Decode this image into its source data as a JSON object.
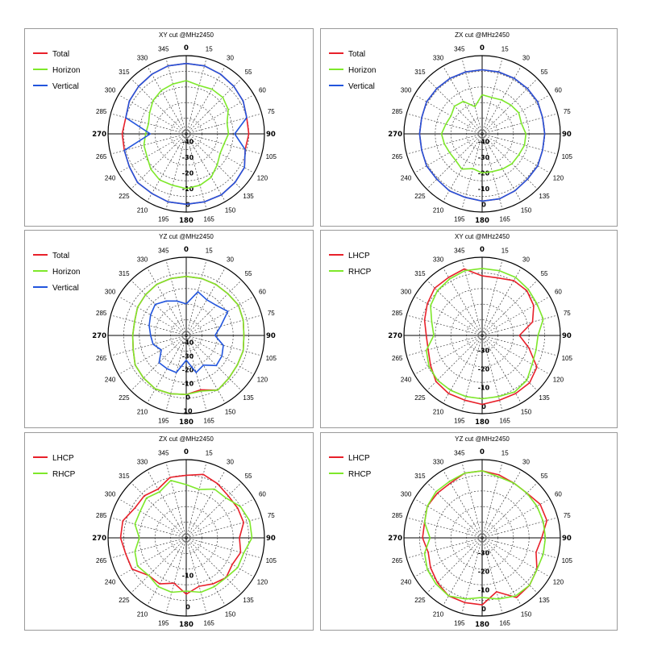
{
  "chart_data": [
    {
      "type": "polar",
      "title": "XY cut @MHz2450",
      "angle_labels": [
        "0",
        "15",
        "30",
        "55",
        "60",
        "75",
        "90",
        "105",
        "120",
        "135",
        "150",
        "165",
        "180",
        "195",
        "210",
        "225",
        "240",
        "265",
        "270",
        "285",
        "300",
        "315",
        "330",
        "345"
      ],
      "radial_labels": [
        "-40",
        "-30",
        "-20",
        "-10",
        "0"
      ],
      "r_range": [
        -45,
        5
      ],
      "legend": [
        "Total",
        "Horizon",
        "Vertical"
      ],
      "series": [
        {
          "name": "Total",
          "color": "#e8202a",
          "r": [
            0,
            0,
            -1,
            -2,
            -3,
            -5,
            -5,
            -6,
            -2,
            -1,
            0,
            0,
            0,
            0,
            -1,
            -1,
            -3,
            -4,
            -4,
            -5,
            -3,
            -2,
            -1,
            0
          ]
        },
        {
          "name": "Horizon",
          "color": "#7ee82a",
          "r": [
            -11,
            -13,
            -12,
            -12,
            -14,
            -18,
            -18,
            -20,
            -20,
            -17,
            -13,
            -11,
            -10,
            -11,
            -11,
            -13,
            -16,
            -17,
            -19,
            -20,
            -18,
            -15,
            -13,
            -12
          ]
        },
        {
          "name": "Vertical",
          "color": "#2255dd",
          "r": [
            0,
            0,
            -1,
            -2,
            -3,
            -5,
            -14,
            -6,
            -2,
            -1,
            0,
            0,
            0,
            0,
            -1,
            -1,
            -3,
            -4,
            -22,
            -5,
            -3,
            -2,
            -1,
            0
          ]
        }
      ]
    },
    {
      "type": "polar",
      "title": "ZX cut @MHz2450",
      "angle_labels": [
        "0",
        "15",
        "30",
        "55",
        "60",
        "75",
        "90",
        "105",
        "120",
        "135",
        "150",
        "165",
        "180",
        "195",
        "210",
        "225",
        "240",
        "265",
        "270",
        "285",
        "300",
        "315",
        "330",
        "345"
      ],
      "radial_labels": [
        "-40",
        "-30",
        "-20",
        "-10",
        "0"
      ],
      "r_range": [
        -45,
        5
      ],
      "legend": [
        "Total",
        "Horizon",
        "Vertical"
      ],
      "series": [
        {
          "name": "Total",
          "color": "#e8202a",
          "r": [
            -4,
            -4,
            -4,
            -4,
            -4,
            -5,
            -5,
            -5,
            -4,
            -4,
            -3,
            -2,
            -2,
            -3,
            -3,
            -4,
            -4,
            -5,
            -5,
            -5,
            -4,
            -4,
            -4,
            -4
          ]
        },
        {
          "name": "Horizon",
          "color": "#7ee82a",
          "r": [
            -20,
            -21,
            -20,
            -19,
            -18,
            -19,
            -17,
            -17,
            -18,
            -18,
            -19,
            -20,
            -20,
            -22,
            -19,
            -21,
            -21,
            -20,
            -19,
            -21,
            -22,
            -20,
            -21,
            -27
          ]
        },
        {
          "name": "Vertical",
          "color": "#2255dd",
          "r": [
            -4,
            -4,
            -4,
            -4,
            -4,
            -5,
            -5,
            -5,
            -4,
            -4,
            -3,
            -2,
            -2,
            -3,
            -3,
            -4,
            -4,
            -5,
            -5,
            -5,
            -4,
            -4,
            -4,
            -4
          ]
        }
      ]
    },
    {
      "type": "polar",
      "title": "YZ cut @MHz2450",
      "angle_labels": [
        "0",
        "15",
        "30",
        "55",
        "60",
        "75",
        "90",
        "105",
        "120",
        "135",
        "150",
        "165",
        "180",
        "195",
        "210",
        "225",
        "240",
        "265",
        "270",
        "285",
        "300",
        "315",
        "330",
        "345"
      ],
      "radial_labels": [
        "-40",
        "-30",
        "-20",
        "-10",
        "0",
        "10"
      ],
      "r_range": [
        -45,
        12
      ],
      "legend": [
        "Total",
        "Horizon",
        "Vertical"
      ],
      "series": [
        {
          "name": "Total",
          "color": "#e8202a",
          "r": [
            -2,
            -2,
            -2,
            -2,
            -1,
            -2,
            -3,
            -2,
            -2,
            -1,
            1,
            -4,
            -2,
            -1,
            0,
            -1,
            -2,
            -5,
            -6,
            -6,
            -4,
            -3,
            -2,
            -2
          ]
        },
        {
          "name": "Horizon",
          "color": "#7ee82a",
          "r": [
            -2,
            -2,
            -2,
            -2,
            -1,
            -2,
            -3,
            -2,
            -2,
            -1,
            1,
            -3,
            -2,
            -1,
            0,
            -1,
            -2,
            -5,
            -6,
            -6,
            -4,
            -3,
            -2,
            -2
          ]
        },
        {
          "name": "Vertical",
          "color": "#2255dd",
          "r": [
            -22,
            -12,
            -15,
            -14,
            -10,
            -19,
            -24,
            -17,
            -15,
            -14,
            -20,
            -17,
            -27,
            -17,
            -17,
            -17,
            -24,
            -20,
            -19,
            -17,
            -15,
            -13,
            -16,
            -19
          ]
        }
      ]
    },
    {
      "type": "polar",
      "title": "XY cut @MHz2450",
      "angle_labels": [
        "0",
        "15",
        "30",
        "55",
        "60",
        "75",
        "90",
        "105",
        "120",
        "135",
        "150",
        "165",
        "180",
        "195",
        "210",
        "225",
        "240",
        "265",
        "270",
        "285",
        "300",
        "315",
        "330",
        "345"
      ],
      "radial_labels": [
        "-30",
        "-20",
        "-10",
        "0"
      ],
      "r_range": [
        -38,
        4
      ],
      "legend": [
        "LHCP",
        "RHCP"
      ],
      "series": [
        {
          "name": "LHCP",
          "color": "#e8202a",
          "r": [
            -6,
            -6,
            -4,
            -4,
            -6,
            -10,
            -18,
            -12,
            -4,
            -2,
            -2,
            -2,
            -1,
            -2,
            -2,
            -3,
            -6,
            -8,
            -8,
            -6,
            -4,
            -2,
            -2,
            -1
          ]
        },
        {
          "name": "RHCP",
          "color": "#7ee82a",
          "r": [
            -2,
            -2,
            -2,
            -3,
            -4,
            -4,
            -8,
            -8,
            -7,
            -4,
            -3,
            -4,
            -4,
            -4,
            -4,
            -4,
            -5,
            -7,
            -12,
            -10,
            -6,
            -4,
            -3,
            -2
          ]
        }
      ]
    },
    {
      "type": "polar",
      "title": "ZX cut @MHz2450",
      "angle_labels": [
        "0",
        "15",
        "30",
        "55",
        "60",
        "75",
        "90",
        "105",
        "120",
        "135",
        "150",
        "165",
        "180",
        "195",
        "210",
        "225",
        "240",
        "265",
        "270",
        "285",
        "300",
        "315",
        "330",
        "345"
      ],
      "radial_labels": [
        "-10",
        "0"
      ],
      "r_range": [
        -22,
        3
      ],
      "legend": [
        "LHCP",
        "RHCP"
      ],
      "series": [
        {
          "name": "LHCP",
          "color": "#e8202a",
          "r": [
            -2,
            -1,
            -2,
            -3,
            -3,
            -3,
            -5,
            -4,
            -5,
            -4,
            -5,
            -6,
            -4,
            -7,
            -5,
            -5,
            -2,
            -2,
            -1,
            -1,
            -3,
            -3,
            -4,
            -2
          ]
        },
        {
          "name": "RHCP",
          "color": "#7ee82a",
          "r": [
            -5,
            -6,
            -4,
            -4,
            -2,
            -1,
            -1,
            -3,
            -3,
            -4,
            -4,
            -4,
            -5,
            -4,
            -4,
            -5,
            -4,
            -5,
            -7,
            -5,
            -5,
            -4,
            -5,
            -3
          ]
        }
      ]
    },
    {
      "type": "polar",
      "title": "YZ cut @MHz2450",
      "angle_labels": [
        "0",
        "15",
        "30",
        "55",
        "60",
        "75",
        "90",
        "105",
        "120",
        "135",
        "150",
        "165",
        "180",
        "195",
        "210",
        "225",
        "240",
        "265",
        "270",
        "285",
        "300",
        "315",
        "330",
        "345"
      ],
      "radial_labels": [
        "-30",
        "-20",
        "-10",
        "0"
      ],
      "r_range": [
        -38,
        4
      ],
      "legend": [
        "LHCP",
        "RHCP"
      ],
      "series": [
        {
          "name": "LHCP",
          "color": "#e8202a",
          "r": [
            -2,
            -3,
            -4,
            -4,
            -2,
            -2,
            -6,
            -8,
            -4,
            -2,
            -1,
            -8,
            -2,
            -2,
            -2,
            -4,
            -6,
            -8,
            -6,
            -6,
            -4,
            -4,
            -4,
            -2
          ]
        },
        {
          "name": "RHCP",
          "color": "#7ee82a",
          "r": [
            -2,
            -4,
            -4,
            -4,
            -4,
            -4,
            -4,
            -4,
            -4,
            -2,
            -2,
            -4,
            -6,
            -4,
            -2,
            -3,
            -4,
            -6,
            -10,
            -6,
            -4,
            -3,
            -3,
            -2
          ]
        }
      ]
    }
  ]
}
